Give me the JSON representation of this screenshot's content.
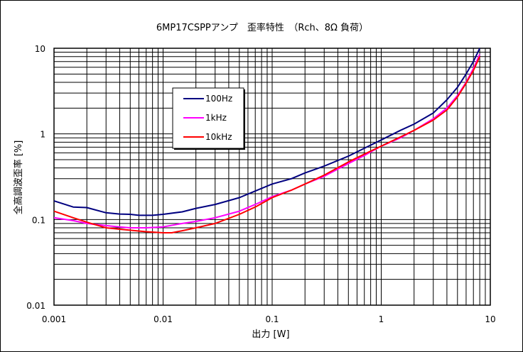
{
  "chart_data": {
    "type": "line",
    "title": "6MP17CSPPアンプ　歪率特性　（Rch、8Ω 負荷）",
    "xlabel": "出力 [W]",
    "ylabel": "全高調波歪率 [%]",
    "x_scale": "log",
    "y_scale": "log",
    "xlim": [
      0.001,
      10
    ],
    "ylim": [
      0.01,
      10
    ],
    "grid": true,
    "legend_placement": "upper-left, inside plot",
    "x_ticks": [
      "0.001",
      "0.01",
      "0.1",
      "1",
      "10"
    ],
    "y_ticks": [
      "0.01",
      "0.1",
      "1",
      "10"
    ],
    "series": [
      {
        "name": "100Hz",
        "color": "#000080",
        "points": [
          [
            0.001,
            0.165
          ],
          [
            0.0015,
            0.14
          ],
          [
            0.002,
            0.138
          ],
          [
            0.003,
            0.12
          ],
          [
            0.004,
            0.116
          ],
          [
            0.005,
            0.115
          ],
          [
            0.006,
            0.112
          ],
          [
            0.008,
            0.112
          ],
          [
            0.01,
            0.115
          ],
          [
            0.015,
            0.123
          ],
          [
            0.02,
            0.135
          ],
          [
            0.03,
            0.15
          ],
          [
            0.05,
            0.18
          ],
          [
            0.07,
            0.215
          ],
          [
            0.1,
            0.26
          ],
          [
            0.15,
            0.3
          ],
          [
            0.2,
            0.35
          ],
          [
            0.3,
            0.42
          ],
          [
            0.5,
            0.55
          ],
          [
            0.7,
            0.68
          ],
          [
            1,
            0.85
          ],
          [
            1.5,
            1.1
          ],
          [
            2,
            1.3
          ],
          [
            3,
            1.75
          ],
          [
            4,
            2.5
          ],
          [
            5,
            3.5
          ],
          [
            6,
            5
          ],
          [
            7,
            7
          ],
          [
            8,
            10
          ]
        ]
      },
      {
        "name": "1kHz",
        "color": "#ff00ff",
        "points": [
          [
            0.001,
            0.105
          ],
          [
            0.0015,
            0.097
          ],
          [
            0.002,
            0.09
          ],
          [
            0.003,
            0.085
          ],
          [
            0.004,
            0.082
          ],
          [
            0.005,
            0.08
          ],
          [
            0.007,
            0.08
          ],
          [
            0.01,
            0.082
          ],
          [
            0.015,
            0.09
          ],
          [
            0.02,
            0.095
          ],
          [
            0.03,
            0.105
          ],
          [
            0.05,
            0.125
          ],
          [
            0.07,
            0.15
          ],
          [
            0.1,
            0.185
          ],
          [
            0.15,
            0.22
          ],
          [
            0.2,
            0.26
          ],
          [
            0.3,
            0.32
          ],
          [
            0.5,
            0.45
          ],
          [
            0.7,
            0.56
          ],
          [
            1,
            0.72
          ],
          [
            1.5,
            0.9
          ],
          [
            2,
            1.1
          ],
          [
            3,
            1.5
          ],
          [
            4,
            2
          ],
          [
            5,
            2.8
          ],
          [
            6,
            4
          ],
          [
            7,
            5.8
          ],
          [
            8,
            8.5
          ]
        ]
      },
      {
        "name": "10kHz",
        "color": "#ff0000",
        "points": [
          [
            0.001,
            0.125
          ],
          [
            0.0015,
            0.105
          ],
          [
            0.002,
            0.093
          ],
          [
            0.003,
            0.08
          ],
          [
            0.004,
            0.077
          ],
          [
            0.005,
            0.075
          ],
          [
            0.007,
            0.072
          ],
          [
            0.01,
            0.07
          ],
          [
            0.012,
            0.07
          ],
          [
            0.015,
            0.074
          ],
          [
            0.02,
            0.08
          ],
          [
            0.03,
            0.09
          ],
          [
            0.05,
            0.115
          ],
          [
            0.07,
            0.14
          ],
          [
            0.1,
            0.18
          ],
          [
            0.15,
            0.22
          ],
          [
            0.2,
            0.26
          ],
          [
            0.3,
            0.33
          ],
          [
            0.5,
            0.47
          ],
          [
            0.7,
            0.58
          ],
          [
            1,
            0.72
          ],
          [
            1.5,
            0.92
          ],
          [
            2,
            1.1
          ],
          [
            3,
            1.45
          ],
          [
            4,
            1.9
          ],
          [
            5,
            2.7
          ],
          [
            6,
            3.9
          ],
          [
            7,
            5.5
          ],
          [
            8,
            8
          ]
        ]
      }
    ]
  }
}
